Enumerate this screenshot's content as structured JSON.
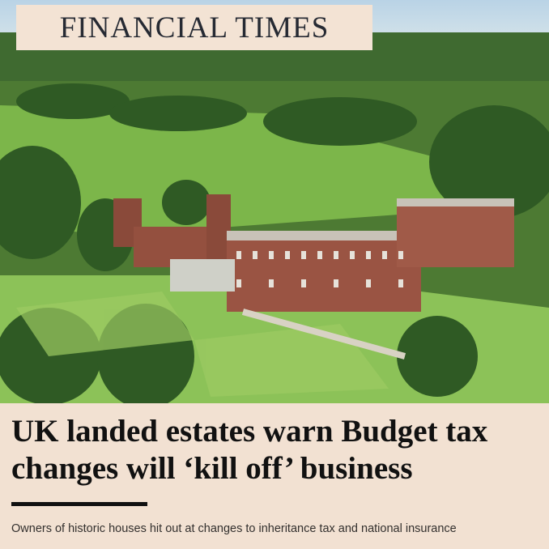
{
  "masthead": "FINANCIAL TIMES",
  "headline": {
    "lines": [
      "UK landed estates warn Budget tax",
      "changes will ‘kill off’ business"
    ]
  },
  "standfirst": "Owners of historic houses hit out at changes to inheritance tax and national insurance"
}
